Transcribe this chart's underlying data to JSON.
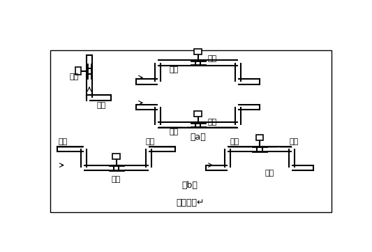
{
  "title": "图（四）↵",
  "label_a": "（a）",
  "label_b": "（b）",
  "texts": {
    "correct1": "正确",
    "correct2": "正确",
    "correct3": "正确",
    "wrong1": "错误",
    "wrong2": "错误",
    "liquid1": "液体",
    "liquid2": "液体",
    "liquid3": "液体",
    "liquid4": "液体",
    "bubble1": "气泡",
    "bubble2": "气泡",
    "bubble3": "气泡",
    "bubble4": "气泡"
  },
  "fig_w": 5.33,
  "fig_h": 3.61,
  "dpi": 100
}
